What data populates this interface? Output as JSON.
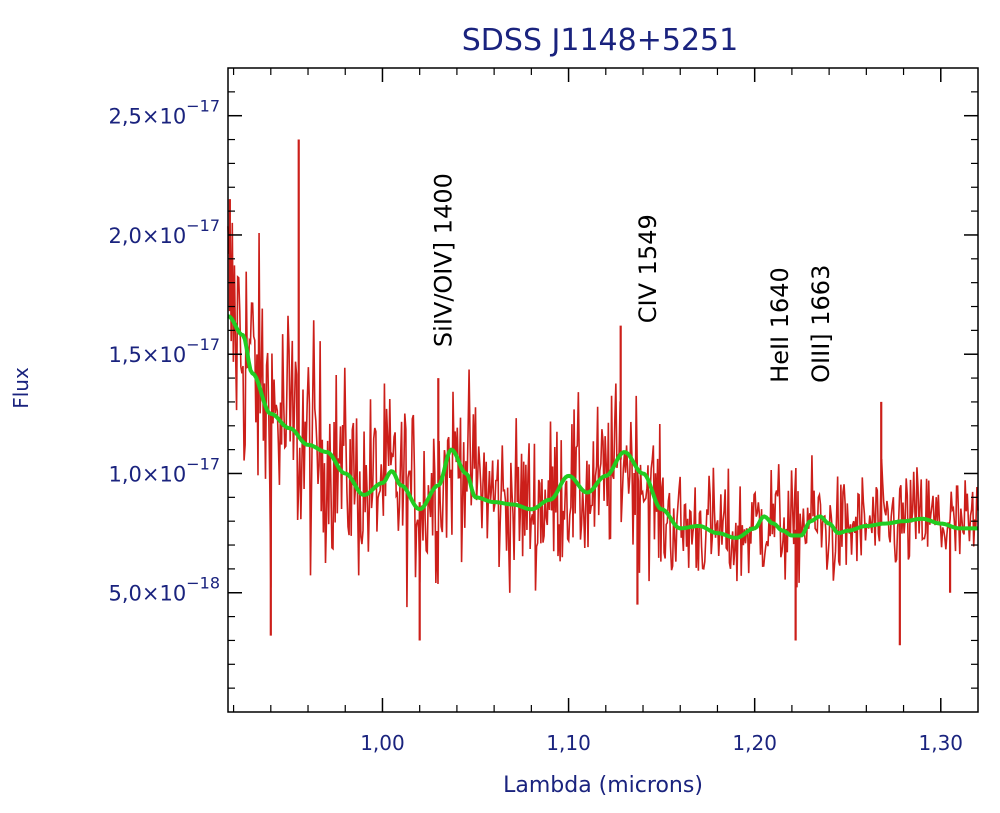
{
  "chart_data": {
    "type": "line",
    "title": "SDSS J1148+5251",
    "xlabel": "Lambda (microns)",
    "ylabel": "Flux",
    "xlim": [
      0.917,
      1.32
    ],
    "ylim": [
      0,
      2.7e-17
    ],
    "x_ticks": [
      {
        "value": 1.0,
        "label": "1,00"
      },
      {
        "value": 1.1,
        "label": "1,10"
      },
      {
        "value": 1.2,
        "label": "1,20"
      },
      {
        "value": 1.3,
        "label": "1,30"
      }
    ],
    "y_ticks": [
      {
        "value": 5e-18,
        "mantissa": "5,0×10",
        "exponent": "−18"
      },
      {
        "value": 1e-17,
        "mantissa": "1,0×10",
        "exponent": "−17"
      },
      {
        "value": 1.5e-17,
        "mantissa": "1,5×10",
        "exponent": "−17"
      },
      {
        "value": 2e-17,
        "mantissa": "2,0×10",
        "exponent": "−17"
      },
      {
        "value": 2.5e-17,
        "mantissa": "2,5×10",
        "exponent": "−17"
      }
    ],
    "annotations": [
      {
        "text": "SiIV/OIV] 1400",
        "x": 1.037,
        "y": 1.53e-17
      },
      {
        "text": "CIV 1549",
        "x": 1.147,
        "y": 1.63e-17
      },
      {
        "text": "HeII 1640",
        "x": 1.218,
        "y": 1.38e-17
      },
      {
        "text": "OIII] 1663",
        "x": 1.24,
        "y": 1.38e-17
      }
    ],
    "series": [
      {
        "color": "#cc1f1a",
        "style": "noisy-spectrum",
        "x": [
          0.917,
          0.93,
          0.94,
          0.95,
          0.96,
          0.97,
          0.98,
          0.99,
          1.0,
          1.01,
          1.02,
          1.03,
          1.04,
          1.05,
          1.06,
          1.07,
          1.08,
          1.09,
          1.1,
          1.11,
          1.12,
          1.13,
          1.14,
          1.15,
          1.16,
          1.17,
          1.18,
          1.19,
          1.2,
          1.21,
          1.22,
          1.23,
          1.24,
          1.25,
          1.26,
          1.27,
          1.28,
          1.29,
          1.3,
          1.31,
          1.32
        ],
        "y": [
          1.7e-17,
          1.45e-17,
          1.25e-17,
          1.2e-17,
          1.1e-17,
          1.08e-17,
          1.02e-17,
          9.2e-18,
          9.8e-18,
          9.5e-18,
          8.8e-18,
          9.6e-18,
          1.08e-17,
          1e-17,
          8.9e-18,
          8.8e-18,
          8.6e-18,
          8.9e-18,
          9.6e-18,
          9.1e-18,
          9.7e-18,
          1.08e-17,
          9.8e-18,
          8.3e-18,
          7.7e-18,
          7.8e-18,
          7.6e-18,
          7.3e-18,
          7.8e-18,
          8.2e-18,
          7.5e-18,
          8.2e-18,
          7.5e-18,
          7.6e-18,
          7.8e-18,
          7.9e-18,
          8e-18,
          8.1e-18,
          7.9e-18,
          7.7e-18,
          7.7e-18
        ],
        "noise_amplitude": [
          6e-18,
          5e-18,
          5e-18,
          5e-18,
          4.5e-18,
          4e-18,
          3.5e-18,
          3.5e-18,
          3.5e-18,
          3.5e-18,
          3.5e-18,
          3.5e-18,
          3e-18,
          3e-18,
          3e-18,
          3e-18,
          3e-18,
          3e-18,
          3e-18,
          3e-18,
          3e-18,
          3e-18,
          3e-18,
          2.5e-18,
          2.2e-18,
          2.2e-18,
          2.2e-18,
          2.2e-18,
          2.2e-18,
          2.2e-18,
          2.2e-18,
          2.2e-18,
          2e-18,
          2e-18,
          2e-18,
          2e-18,
          2e-18,
          2e-18,
          2e-18,
          2e-18,
          2e-18
        ],
        "spikes": [
          {
            "x": 0.918,
            "y": 2.15e-17
          },
          {
            "x": 0.955,
            "y": 2.4e-17
          },
          {
            "x": 0.94,
            "y": 3.2e-18
          },
          {
            "x": 1.02,
            "y": 3e-18
          },
          {
            "x": 1.03,
            "y": 1.4e-17
          },
          {
            "x": 1.128,
            "y": 1.62e-17
          },
          {
            "x": 1.137,
            "y": 4.5e-18
          },
          {
            "x": 1.222,
            "y": 3e-18
          },
          {
            "x": 1.268,
            "y": 1.3e-17
          },
          {
            "x": 1.278,
            "y": 2.8e-18
          },
          {
            "x": 1.305,
            "y": 5e-18
          }
        ]
      },
      {
        "color": "#22cc22",
        "style": "smoothed-fit",
        "x": [
          0.917,
          0.925,
          0.93,
          0.94,
          0.95,
          0.96,
          0.97,
          0.98,
          0.99,
          1.0,
          1.005,
          1.01,
          1.02,
          1.03,
          1.037,
          1.045,
          1.05,
          1.06,
          1.07,
          1.08,
          1.09,
          1.1,
          1.11,
          1.12,
          1.13,
          1.14,
          1.15,
          1.16,
          1.17,
          1.18,
          1.19,
          1.2,
          1.205,
          1.21,
          1.215,
          1.22,
          1.225,
          1.23,
          1.235,
          1.24,
          1.245,
          1.25,
          1.26,
          1.27,
          1.28,
          1.29,
          1.3,
          1.31,
          1.32
        ],
        "y": [
          1.66e-17,
          1.58e-17,
          1.42e-17,
          1.25e-17,
          1.19e-17,
          1.12e-17,
          1.09e-17,
          1e-17,
          9.1e-18,
          9.6e-18,
          1.01e-17,
          9.5e-18,
          8.5e-18,
          9.5e-18,
          1.1e-17,
          1e-17,
          9e-18,
          8.8e-18,
          8.7e-18,
          8.5e-18,
          8.9e-18,
          9.9e-18,
          9.2e-18,
          9.9e-18,
          1.09e-17,
          1e-17,
          8.5e-18,
          7.7e-18,
          7.8e-18,
          7.5e-18,
          7.3e-18,
          7.7e-18,
          8.2e-18,
          7.9e-18,
          7.6e-18,
          7.4e-18,
          7.4e-18,
          8e-18,
          8.2e-18,
          7.9e-18,
          7.5e-18,
          7.6e-18,
          7.8e-18,
          7.9e-18,
          8e-18,
          8.1e-18,
          7.9e-18,
          7.7e-18,
          7.7e-18
        ]
      }
    ]
  },
  "colors": {
    "axis": "#000000",
    "title": "#1a237e",
    "label": "#1a237e",
    "annotation": "#000000"
  }
}
